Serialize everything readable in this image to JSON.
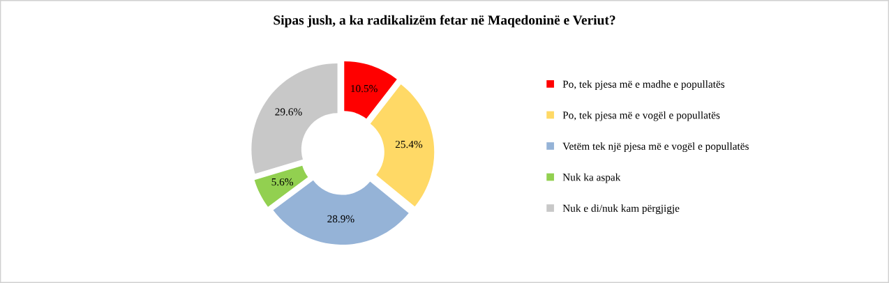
{
  "chart_data": {
    "type": "donut",
    "title": "Sipas jush, a ka radikalizëm fetar në Maqedoninë e Veriut?",
    "categories": [
      "Po, tek pjesa më e madhe e popullatës",
      "Po, tek pjesa më e vogël e popullatës",
      "Vetëm tek një pjesa më e vogël e popullatës",
      "Nuk ka aspak",
      "Nuk e di/nuk kam përgjigje"
    ],
    "values": [
      10.5,
      25.4,
      28.9,
      5.6,
      29.6
    ],
    "colors": [
      "#ff0000",
      "#ffd966",
      "#95b3d7",
      "#92d050",
      "#c8c8c8"
    ],
    "value_labels": [
      "10.5%",
      "25.4%",
      "28.9%",
      "5.6%",
      "29.6%"
    ],
    "legend": "right"
  }
}
